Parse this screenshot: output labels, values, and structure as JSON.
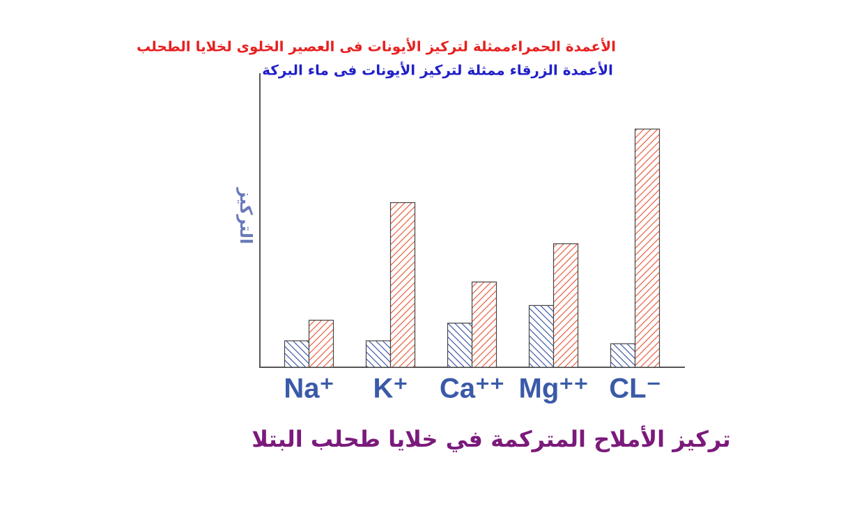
{
  "chart_data": {
    "type": "bar",
    "title": "تركيز الأملاح المتركمة في خلايا طحلب البتلا",
    "y_label": "التركيز",
    "categories": [
      "Na⁺",
      "K⁺",
      "Ca⁺⁺",
      "Mg⁺⁺",
      "CL⁻"
    ],
    "series": [
      {
        "name": "الأعمدة الزرقاء ممثلة لتركيز الأيونات فى ماء البركة",
        "color": "#2f4a9e",
        "values": [
          9,
          9,
          15,
          21,
          8
        ]
      },
      {
        "name": "الأعمدة الحمراءممثلة  لتركيز الأيونات فى العصير الخلوى لخلايا الطحلب",
        "color": "#e8502f",
        "values": [
          16,
          56,
          29,
          42,
          81
        ]
      }
    ],
    "ylim": [
      0,
      100
    ],
    "hatch": true
  }
}
